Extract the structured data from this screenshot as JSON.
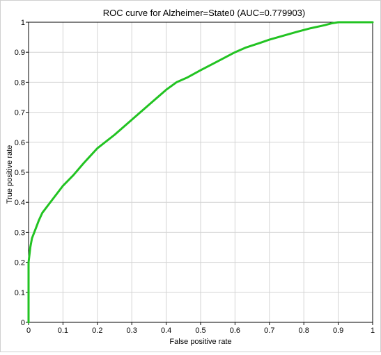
{
  "chart_data": {
    "type": "line",
    "title": "ROC curve for Alzheimer=State0 (AUC=0.779903)",
    "xlabel": "False positive rate",
    "ylabel": "True positive rate",
    "xlim": [
      0,
      1
    ],
    "ylim": [
      0,
      1
    ],
    "xticks": [
      "0",
      "0.1",
      "0.2",
      "0.3",
      "0.4",
      "0.5",
      "0.6",
      "0.7",
      "0.8",
      "0.9",
      "1"
    ],
    "yticks": [
      "0",
      "0.1",
      "0.2",
      "0.3",
      "0.4",
      "0.5",
      "0.6",
      "0.7",
      "0.8",
      "0.9",
      "1"
    ],
    "grid": true,
    "series": [
      {
        "color": "#22c322",
        "x": [
          0,
          0,
          0.002,
          0.005,
          0.01,
          0.02,
          0.03,
          0.04,
          0.06,
          0.08,
          0.1,
          0.13,
          0.16,
          0.2,
          0.25,
          0.3,
          0.35,
          0.4,
          0.43,
          0.46,
          0.5,
          0.55,
          0.6,
          0.63,
          0.67,
          0.7,
          0.74,
          0.78,
          0.82,
          0.86,
          0.88,
          0.9,
          0.93,
          1.0
        ],
        "y": [
          0,
          0.2,
          0.22,
          0.25,
          0.28,
          0.31,
          0.34,
          0.365,
          0.395,
          0.425,
          0.455,
          0.49,
          0.53,
          0.58,
          0.625,
          0.675,
          0.725,
          0.775,
          0.8,
          0.815,
          0.84,
          0.87,
          0.9,
          0.915,
          0.93,
          0.942,
          0.955,
          0.968,
          0.98,
          0.99,
          0.996,
          1.0,
          1.0,
          1.0
        ]
      }
    ]
  }
}
